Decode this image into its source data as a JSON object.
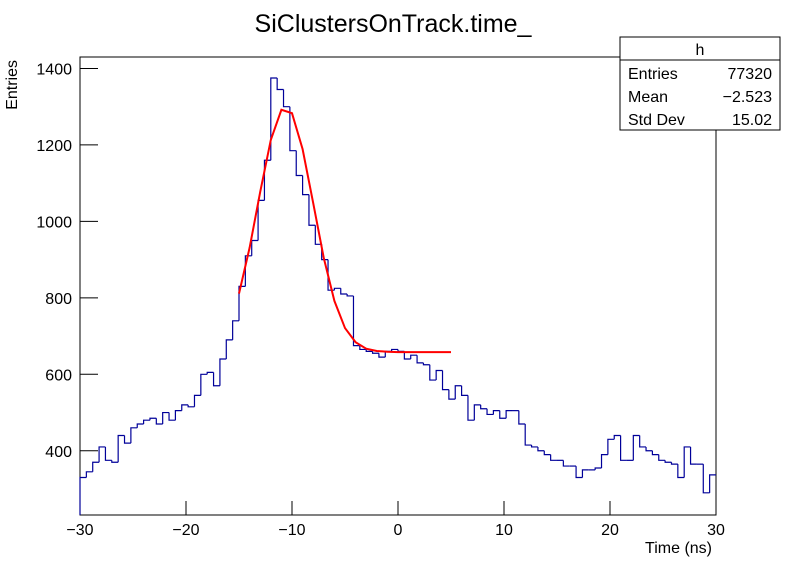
{
  "chart_data": {
    "type": "histogram",
    "title": "SiClustersOnTrack.time_",
    "x_label": "Time (ns)",
    "y_label": "Entries",
    "color": "#000099",
    "bins": [
      -30,
      -29.4,
      -28.8,
      -28.2,
      -27.6,
      -27,
      -26.4,
      -25.8,
      -25.2,
      -24.6,
      -24,
      -23.4,
      -22.8,
      -22.2,
      -21.6,
      -21,
      -20.4,
      -19.8,
      -19.2,
      -18.6,
      -18,
      -17.4,
      -16.8,
      -16.2,
      -15.6,
      -15,
      -14.4,
      -13.8,
      -13.2,
      -12.6,
      -12,
      -11.4,
      -10.8,
      -10.2,
      -9.6,
      -9,
      -8.4,
      -7.8,
      -7.2,
      -6.6,
      -6,
      -5.4,
      -4.8,
      -4.2,
      -3.6,
      -3,
      -2.4,
      -1.8,
      -1.2,
      -0.6,
      0,
      0.6,
      1.2,
      1.8,
      2.4,
      3,
      3.6,
      4.2,
      4.8,
      5.4,
      6,
      6.6,
      7.2,
      7.8,
      8.4,
      9,
      9.6,
      10.2,
      10.8,
      11.4,
      12,
      12.6,
      13.2,
      13.8,
      14.4,
      15,
      15.6,
      16.2,
      16.8,
      17.4,
      18,
      18.6,
      19.2,
      19.8,
      20.4,
      21,
      21.6,
      22.2,
      22.8,
      23.4,
      24,
      24.6,
      25.2,
      25.8,
      26.4,
      27,
      27.6,
      28.2,
      28.8,
      29.4,
      30
    ],
    "values": [
      330,
      345,
      370,
      410,
      375,
      370,
      440,
      420,
      460,
      470,
      480,
      485,
      470,
      500,
      480,
      505,
      520,
      515,
      545,
      600,
      605,
      570,
      640,
      690,
      740,
      830,
      910,
      950,
      1055,
      1160,
      1375,
      1345,
      1300,
      1185,
      1120,
      1070,
      990,
      940,
      900,
      820,
      825,
      810,
      805,
      675,
      665,
      660,
      655,
      645,
      660,
      665,
      660,
      640,
      650,
      630,
      625,
      585,
      610,
      560,
      535,
      570,
      545,
      480,
      520,
      510,
      495,
      505,
      485,
      505,
      505,
      470,
      415,
      410,
      400,
      390,
      375,
      375,
      360,
      360,
      330,
      350,
      350,
      355,
      390,
      430,
      440,
      375,
      375,
      440,
      410,
      400,
      390,
      375,
      370,
      365,
      330,
      410,
      365,
      365,
      290,
      337
    ],
    "fit": {
      "color": "#ff0000",
      "x": [
        -15,
        -14,
        -13,
        -12,
        -11,
        -10,
        -9,
        -8,
        -7,
        -6,
        -5,
        -4,
        -3,
        -2,
        -1,
        0,
        1,
        2,
        3,
        4,
        5
      ],
      "values": [
        811,
        931,
        1077,
        1213,
        1292,
        1283,
        1189,
        1048,
        904,
        792,
        721,
        684,
        667,
        661,
        659,
        658,
        658,
        658,
        658,
        658,
        658
      ]
    },
    "xlim": [
      -30,
      30
    ],
    "xticks": [
      {
        "value": -30,
        "label": "−30"
      },
      {
        "value": -20,
        "label": "−20"
      },
      {
        "value": -10,
        "label": "−10"
      },
      0,
      10,
      20,
      30
    ],
    "ylim": [
      232,
      1430
    ],
    "yticks": [
      400,
      600,
      800,
      1000,
      1200,
      1400
    ],
    "stats": {
      "title": "h",
      "rows": [
        [
          "Entries",
          "77320"
        ],
        [
          "Mean",
          "−2.523"
        ],
        [
          "Std Dev",
          "15.02"
        ]
      ]
    }
  }
}
